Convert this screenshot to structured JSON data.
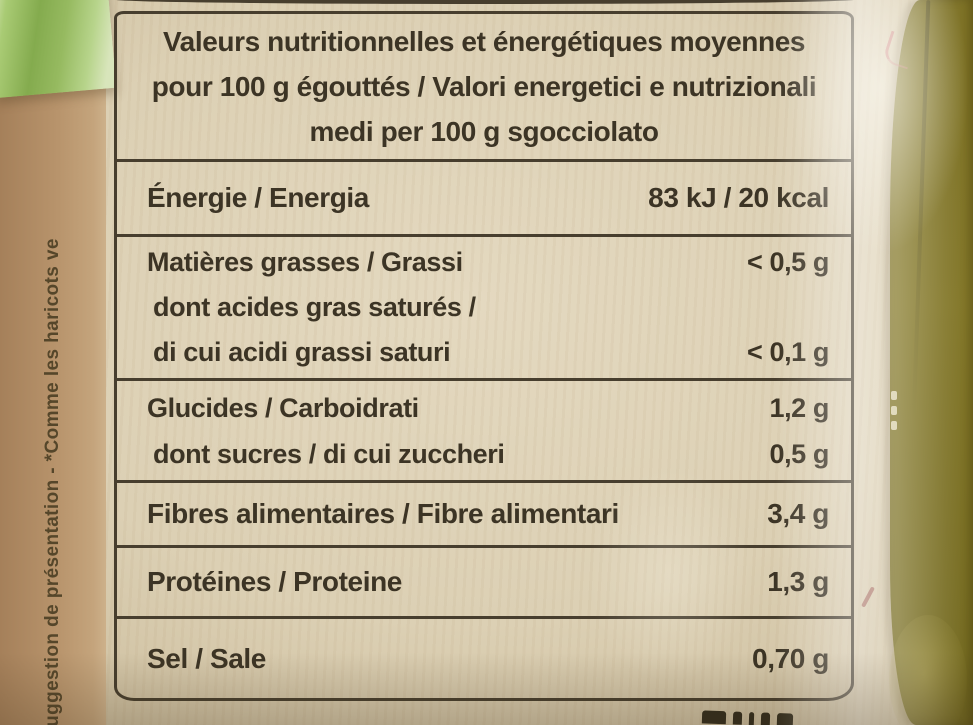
{
  "photo": {
    "side_text": "Suggestion de présentation - *Comme les haricots ve",
    "nutrition_table": {
      "title_line1": "Valeurs nutritionnelles et énergétiques moyennes",
      "title_line2": "pour 100 g égouttés / Valori energetici e nutrizionali",
      "title_line3": "medi per 100 g sgocciolato",
      "rows": [
        {
          "label": "Énergie / Energia",
          "value": "83 kJ / 20 kcal"
        },
        {
          "label": "Matières grasses / Grassi",
          "value": "< 0,5 g",
          "sub1_label": "dont acides gras saturés /",
          "sub2_label": "di cui acidi grassi saturi",
          "sub2_value": "< 0,1 g"
        },
        {
          "label": "Glucides / Carboidrati",
          "value": "1,2 g",
          "sub1_label": "dont sucres / di cui zuccheri",
          "sub1_value": "0,5 g"
        },
        {
          "label": "Fibres alimentaires / Fibre alimentari",
          "value": "3,4 g"
        },
        {
          "label": "Protéines / Proteine",
          "value": "1,3 g"
        },
        {
          "label": "Sel / Sale",
          "value": "0,70 g"
        }
      ]
    },
    "colors": {
      "label_cream": "#ddd1b6",
      "table_ink": "#3c3425",
      "left_edge_tan": "#b8946c",
      "bean_green_patch": "#96ba60",
      "bean_olive": "#7a6e1e",
      "red_mark": "#c46c6e"
    }
  }
}
